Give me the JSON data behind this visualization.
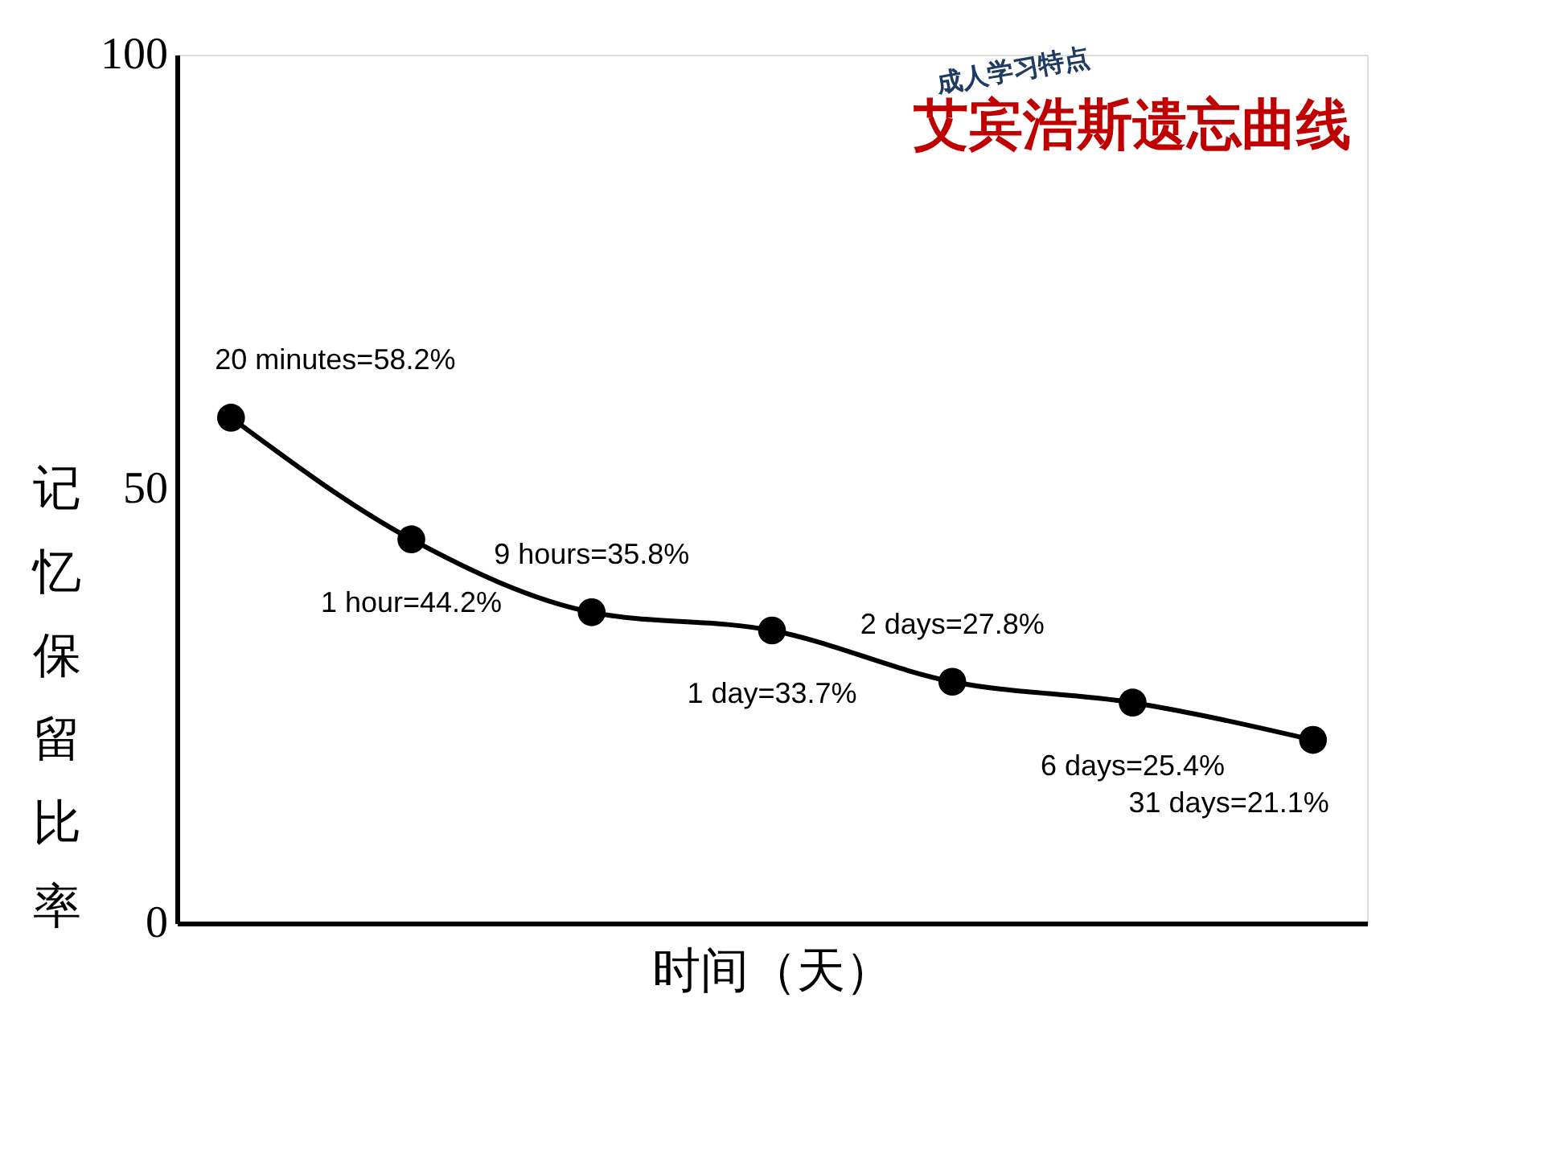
{
  "chart_data": {
    "type": "line",
    "title": "艾宾浩斯遗忘曲线",
    "xlabel": "时间（天）",
    "ylabel": "记忆保留比率",
    "categories": [
      null,
      null,
      null,
      null,
      null,
      null,
      null
    ],
    "series": [
      {
        "color": "#000000",
        "values": [
          58.2,
          44.2,
          35.8,
          33.7,
          27.8,
          25.4,
          21.1
        ],
        "value_labels": [
          "20 minutes=58.2%",
          "1 hour=44.2%",
          "9 hours=35.8%",
          "1 day=33.7%",
          "2 days=27.8%",
          "6 days=25.4%",
          "31 days=21.1%"
        ]
      }
    ],
    "ylim": [
      0,
      100
    ],
    "yticks": [
      0,
      50,
      100
    ],
    "grid": false,
    "marker": "circle",
    "line_style": "solid",
    "tick_labels": "y",
    "annotations": [
      "成人学习特点"
    ]
  }
}
